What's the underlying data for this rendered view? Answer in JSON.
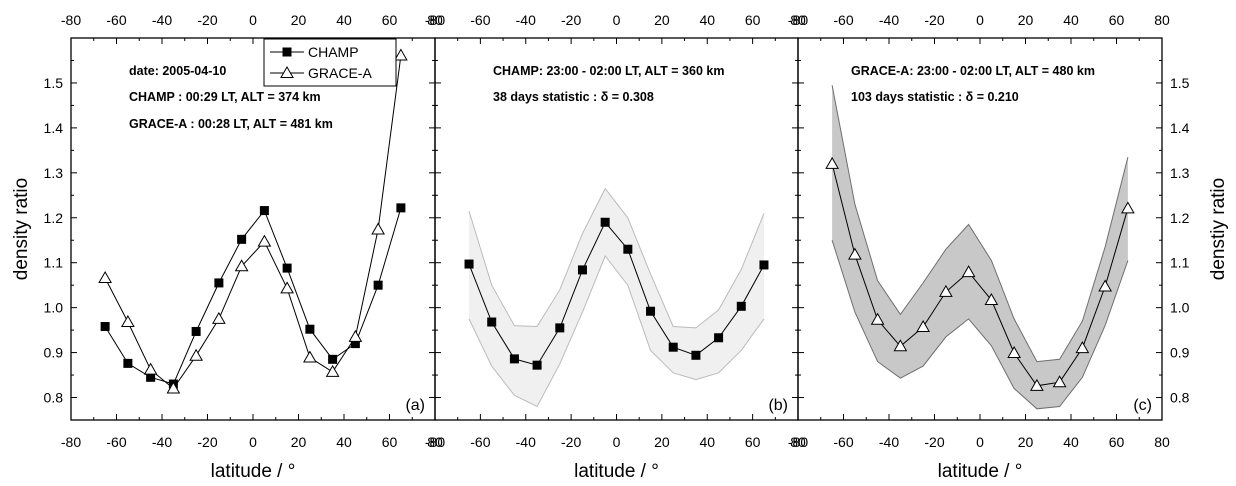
{
  "chart_data": [
    {
      "type": "line",
      "panel_label": "(a)",
      "xlabel": "latitude / °",
      "ylabel": "density ratio",
      "xlim": [
        -80,
        80
      ],
      "ylim": [
        0.75,
        1.6
      ],
      "xticks": [
        -80,
        -60,
        -40,
        -20,
        0,
        20,
        40,
        60,
        80
      ],
      "yticks": [
        0.8,
        0.9,
        1.0,
        1.1,
        1.2,
        1.3,
        1.4,
        1.5
      ],
      "legend": {
        "placement": "top-right"
      },
      "annotations": [
        "date: 2005-04-10",
        "CHAMP    :  00:29 LT, ALT = 374 km",
        "GRACE-A :  00:28 LT, ALT = 481 km"
      ],
      "series": [
        {
          "name": "CHAMP",
          "marker": "filled-square",
          "x": [
            -65,
            -55,
            -45,
            -35,
            -25,
            -15,
            -5,
            5,
            15,
            25,
            35,
            45,
            55,
            65
          ],
          "y": [
            0.958,
            0.876,
            0.845,
            0.83,
            0.947,
            1.055,
            1.152,
            1.216,
            1.088,
            0.952,
            0.885,
            0.92,
            1.05,
            1.222
          ]
        },
        {
          "name": "GRACE-A",
          "marker": "open-triangle",
          "x": [
            -65,
            -55,
            -45,
            -35,
            -25,
            -15,
            -5,
            5,
            15,
            25,
            35,
            45,
            55,
            65
          ],
          "y": [
            1.066,
            0.968,
            0.862,
            0.82,
            0.893,
            0.975,
            1.092,
            1.147,
            1.043,
            0.889,
            0.857,
            0.935,
            1.174,
            1.561
          ]
        }
      ]
    },
    {
      "type": "line",
      "panel_label": "(b)",
      "xlabel": "latitude / °",
      "xlim": [
        -80,
        80
      ],
      "ylim": [
        0.75,
        1.6
      ],
      "xticks": [
        -80,
        -60,
        -40,
        -20,
        0,
        20,
        40,
        60,
        80
      ],
      "annotations": [
        "CHAMP: 23:00 - 02:00 LT, ALT = 360 km",
        "38 days statistic :  δ = 0.308"
      ],
      "band_color": "#f0f0f0",
      "band_edge_color": "#bbbbbb",
      "series": [
        {
          "marker": "filled-square",
          "x": [
            -65,
            -55,
            -45,
            -35,
            -25,
            -15,
            -5,
            5,
            15,
            25,
            35,
            45,
            55,
            65
          ],
          "y": [
            1.097,
            0.968,
            0.886,
            0.872,
            0.955,
            1.084,
            1.19,
            1.13,
            0.992,
            0.912,
            0.894,
            0.933,
            1.003,
            1.095
          ],
          "lower": [
            0.975,
            0.87,
            0.805,
            0.78,
            0.875,
            0.99,
            1.115,
            1.05,
            0.905,
            0.855,
            0.84,
            0.855,
            0.905,
            0.975
          ],
          "upper": [
            1.215,
            1.05,
            0.96,
            0.958,
            1.04,
            1.165,
            1.265,
            1.2,
            1.075,
            0.958,
            0.955,
            0.995,
            1.085,
            1.21
          ]
        }
      ]
    },
    {
      "type": "line",
      "panel_label": "(c)",
      "xlabel": "latitude / °",
      "ylabel": "denstiy ratio",
      "xlim": [
        -80,
        80
      ],
      "ylim": [
        0.75,
        1.6
      ],
      "xticks": [
        -80,
        -60,
        -40,
        -20,
        0,
        20,
        40,
        60,
        80
      ],
      "yticks": [
        0.8,
        0.9,
        1.0,
        1.1,
        1.2,
        1.3,
        1.4,
        1.5
      ],
      "annotations": [
        "GRACE-A:  23:00 - 02:00 LT, ALT = 480 km",
        "103 days statistic :  δ = 0.210"
      ],
      "band_color": "#c8c8c8",
      "band_edge_color": "#6e6e6e",
      "series": [
        {
          "marker": "open-triangle",
          "x": [
            -65,
            -55,
            -45,
            -35,
            -25,
            -15,
            -5,
            5,
            15,
            25,
            35,
            45,
            55,
            65
          ],
          "y": [
            1.32,
            1.118,
            0.973,
            0.914,
            0.957,
            1.035,
            1.079,
            1.017,
            0.899,
            0.826,
            0.834,
            0.91,
            1.047,
            1.221
          ],
          "lower": [
            1.15,
            0.99,
            0.88,
            0.843,
            0.87,
            0.935,
            0.975,
            0.915,
            0.82,
            0.775,
            0.78,
            0.845,
            0.96,
            1.105
          ],
          "upper": [
            1.495,
            1.23,
            1.06,
            0.985,
            1.055,
            1.13,
            1.185,
            1.105,
            0.975,
            0.88,
            0.885,
            0.97,
            1.135,
            1.335
          ]
        }
      ]
    }
  ]
}
